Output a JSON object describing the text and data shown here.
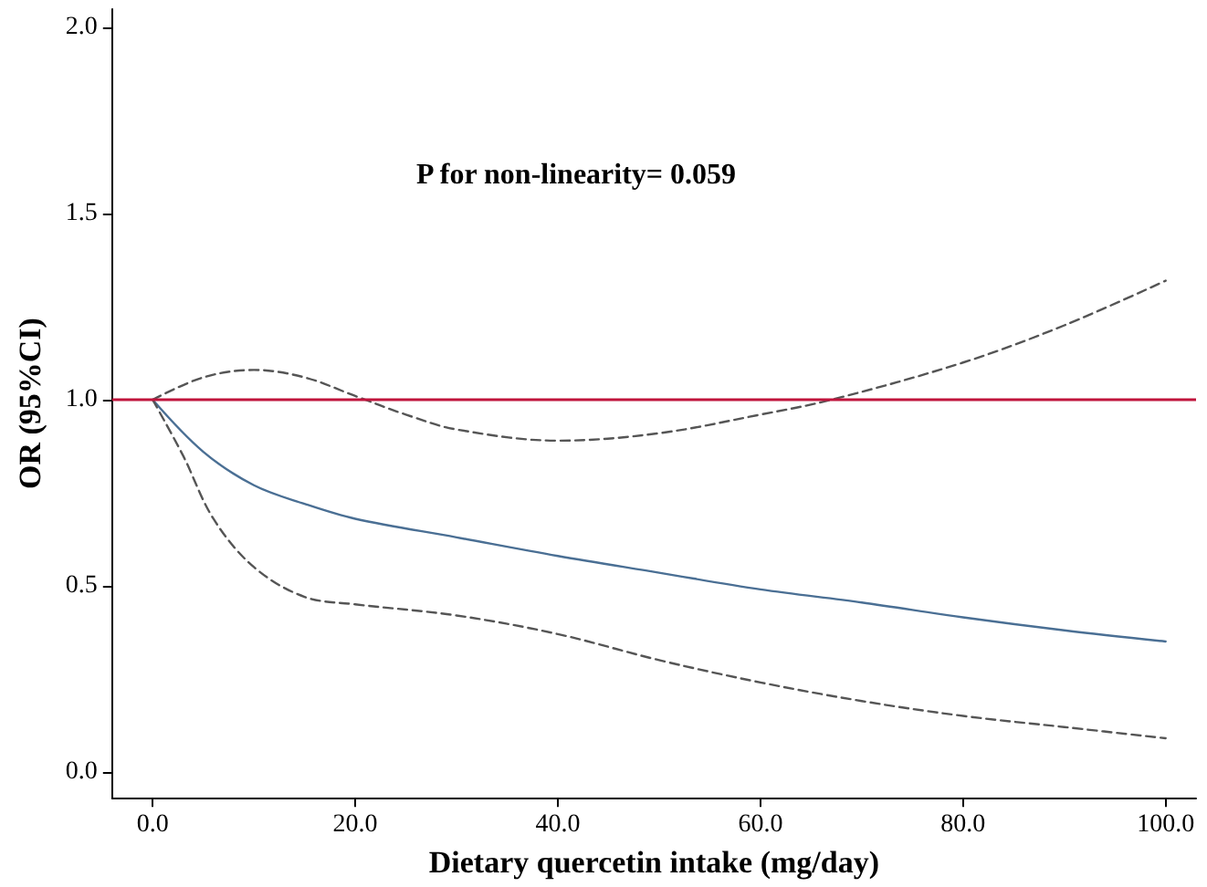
{
  "chart_data": {
    "type": "line",
    "xlabel": "Dietary quercetin intake (mg/day)",
    "ylabel": "OR (95%CI)",
    "annotations": [
      "P for non-linearity= 0.059"
    ],
    "xlim": [
      -4,
      103
    ],
    "ylim": [
      -0.07,
      2.05
    ],
    "xticks": [
      {
        "value": 0,
        "label": "0.0"
      },
      {
        "value": 20,
        "label": "20.0"
      },
      {
        "value": 40,
        "label": "40.0"
      },
      {
        "value": 60,
        "label": "60.0"
      },
      {
        "value": 80,
        "label": "80.0"
      },
      {
        "value": 100,
        "label": "100.0"
      }
    ],
    "yticks": [
      {
        "value": 0,
        "label": "0.0"
      },
      {
        "value": 0.5,
        "label": "0.5"
      },
      {
        "value": 1,
        "label": "1.0"
      },
      {
        "value": 1.5,
        "label": "1.5"
      },
      {
        "value": 2,
        "label": "2.0"
      }
    ],
    "marker": "none",
    "series": [
      {
        "color": "#4a6f94",
        "line_style": "solid",
        "x": [
          0,
          5,
          10,
          15,
          20,
          30,
          40,
          50,
          60,
          70,
          80,
          90,
          100
        ],
        "values": [
          1.0,
          0.86,
          0.77,
          0.72,
          0.68,
          0.63,
          0.58,
          0.535,
          0.49,
          0.455,
          0.415,
          0.38,
          0.35
        ]
      },
      {
        "color": "#555555",
        "line_style": "dashed",
        "x": [
          0,
          5,
          10,
          15,
          20,
          25,
          30,
          40,
          50,
          60,
          67,
          80,
          90,
          100
        ],
        "values": [
          1.0,
          1.06,
          1.08,
          1.06,
          1.01,
          0.96,
          0.92,
          0.89,
          0.91,
          0.96,
          1.0,
          1.1,
          1.2,
          1.32
        ]
      },
      {
        "color": "#555555",
        "line_style": "dashed",
        "x": [
          0,
          3,
          6,
          10,
          15,
          20,
          30,
          40,
          50,
          60,
          70,
          80,
          90,
          100
        ],
        "values": [
          1.0,
          0.85,
          0.68,
          0.55,
          0.47,
          0.45,
          0.42,
          0.37,
          0.3,
          0.24,
          0.19,
          0.15,
          0.12,
          0.09
        ]
      }
    ],
    "ref_lines": [
      {
        "axis": "y",
        "value": 1,
        "color": "#c0143c",
        "line_style": "solid"
      }
    ]
  }
}
